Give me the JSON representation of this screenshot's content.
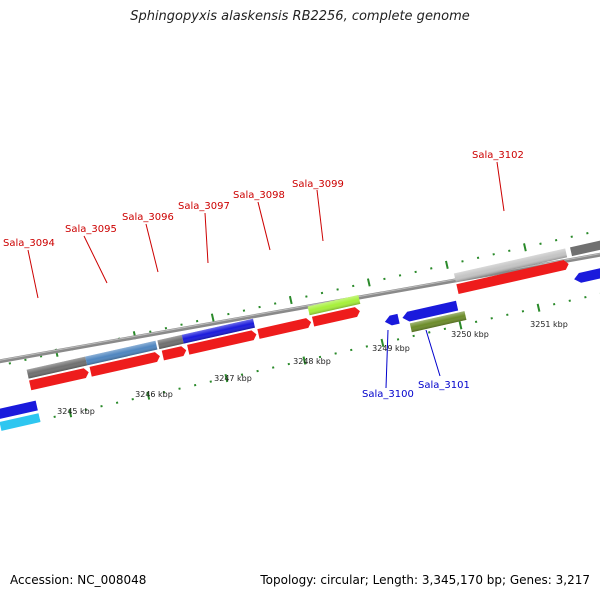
{
  "title": "Sphingopyxis alaskensis RB2256, complete genome",
  "footer": {
    "accession": "Accession: NC_008048",
    "topology": "Topology: circular; Length: 3,345,170 bp; Genes: 3,217"
  },
  "colors": {
    "background": "#ffffff",
    "backbone": "#888888",
    "tick": "#2a8a2a",
    "forward_label": "#cc0000",
    "reverse_label": "#0000cc",
    "red": "#ee1c1c",
    "blue": "#1a1adc",
    "gray": "#707070",
    "steelblue": "#4f86c0",
    "lightgray": "#c4c4c4",
    "lime": "#a6f03a",
    "olive": "#6c8c2a",
    "cyan": "#2ec6f0"
  },
  "scale_labels": [
    "3245 kbp",
    "3246 kbp",
    "3247 kbp",
    "3248 kbp",
    "3249 kbp",
    "3250 kbp",
    "3251 kbp"
  ],
  "gene_labels": {
    "sala_3094": "Sala_3094",
    "sala_3095": "Sala_3095",
    "sala_3096": "Sala_3096",
    "sala_3097": "Sala_3097",
    "sala_3098": "Sala_3098",
    "sala_3099": "Sala_3099",
    "sala_3100": "Sala_3100",
    "sala_3101": "Sala_3101",
    "sala_3102": "Sala_3102"
  }
}
